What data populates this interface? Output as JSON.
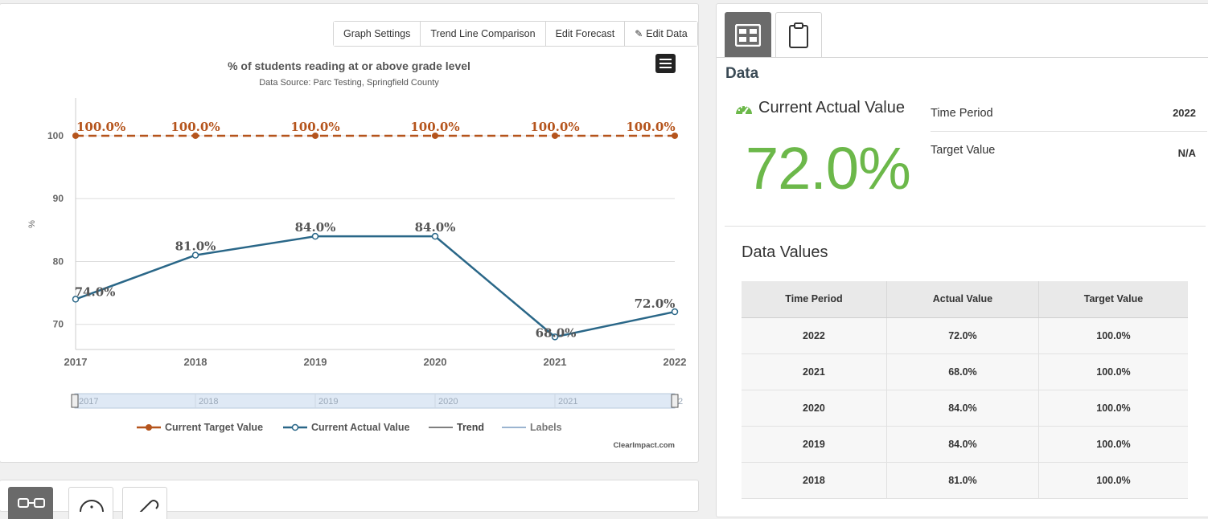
{
  "toolbar": {
    "graph_settings": "Graph Settings",
    "trend_line": "Trend Line Comparison",
    "edit_forecast": "Edit Forecast",
    "edit_data": "Edit Data"
  },
  "chart_data": {
    "type": "line",
    "title": "% of students reading at or above grade level",
    "subtitle": "Data Source: Parc Testing, Springfield County",
    "ylabel": "%",
    "xlabel": "",
    "ylim": [
      66,
      106
    ],
    "yticks": [
      70,
      80,
      90,
      100
    ],
    "x": [
      "2017",
      "2018",
      "2019",
      "2020",
      "2021",
      "2022"
    ],
    "series": [
      {
        "name": "Current Target Value",
        "values": [
          100,
          100,
          100,
          100,
          100,
          100
        ],
        "labels": [
          "100.0%",
          "100.0%",
          "100.0%",
          "100.0%",
          "100.0%",
          "100.0%"
        ],
        "color": "#b5541c",
        "style": "dashed"
      },
      {
        "name": "Current Actual Value",
        "values": [
          74,
          81,
          84,
          84,
          68,
          72
        ],
        "labels": [
          "74.0%",
          "81.0%",
          "84.0%",
          "84.0%",
          "68.0%",
          "72.0%"
        ],
        "color": "#2a6788",
        "style": "solid"
      }
    ],
    "legend": [
      {
        "name": "Current Target Value",
        "color": "#b5541c",
        "marker": "filled"
      },
      {
        "name": "Current Actual Value",
        "color": "#2a6788",
        "marker": "hollow"
      },
      {
        "name": "Trend",
        "color": "#555555",
        "marker": "none"
      },
      {
        "name": "Labels",
        "color": "#7a9cc0",
        "marker": "none"
      }
    ],
    "navigator_labels": [
      "2017",
      "2018",
      "2019",
      "2020",
      "2021",
      "2"
    ],
    "credit": "ClearImpact.com",
    "grid": true,
    "legend_position": "bottom"
  },
  "data_panel": {
    "heading": "Data",
    "current_actual_title": "Current Actual Value",
    "current_actual_value": "72.0%",
    "time_period_label": "Time Period",
    "time_period_value": "2022",
    "target_value_label": "Target Value",
    "target_value_value": "N/A",
    "values_title": "Data Values",
    "columns": [
      "Time Period",
      "Actual Value",
      "Target Value"
    ],
    "rows": [
      [
        "2022",
        "72.0%",
        "100.0%"
      ],
      [
        "2021",
        "68.0%",
        "100.0%"
      ],
      [
        "2020",
        "84.0%",
        "100.0%"
      ],
      [
        "2019",
        "84.0%",
        "100.0%"
      ],
      [
        "2018",
        "81.0%",
        "100.0%"
      ]
    ]
  },
  "icons": {
    "dashboard_tab": "dashboard-icon",
    "clipboard_tab": "clipboard-icon",
    "gauge": "gauge-icon",
    "menu": "menu-icon",
    "pencil": "pencil-icon",
    "link_tab": "link-icon",
    "info_tab": "info-icon",
    "attach_tab": "paperclip-icon"
  },
  "colors": {
    "accent_green": "#6cb84a",
    "target_orange": "#b5541c",
    "actual_blue": "#2a6788"
  }
}
